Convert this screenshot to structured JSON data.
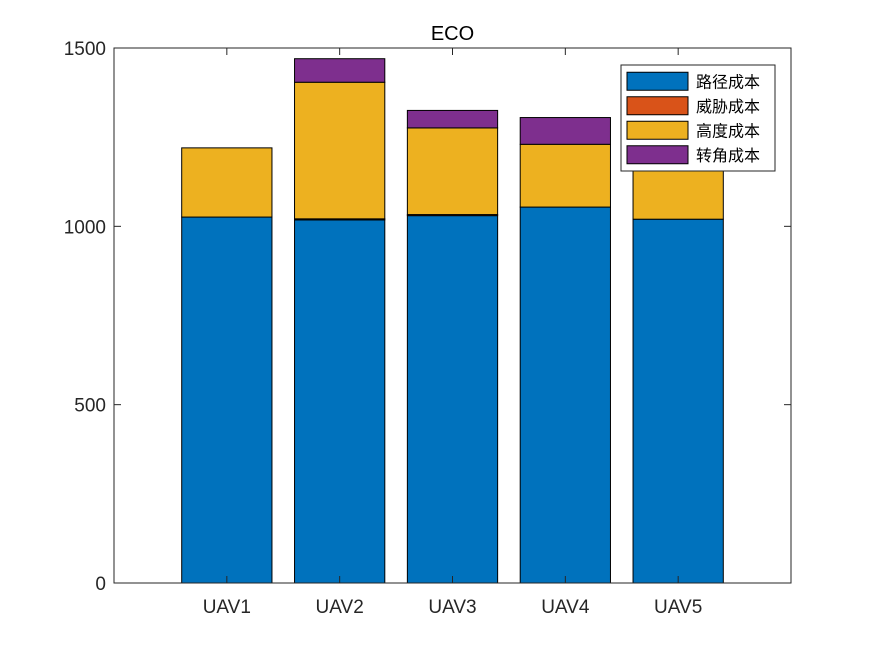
{
  "chart_data": {
    "type": "bar",
    "stacked": true,
    "title": "ECO",
    "xlabel": "",
    "ylabel": "",
    "categories": [
      "UAV1",
      "UAV2",
      "UAV3",
      "UAV4",
      "UAV5"
    ],
    "series": [
      {
        "name": "路径成本",
        "color": "#0072BD",
        "values": [
          1026,
          1018,
          1030,
          1054,
          1020
        ]
      },
      {
        "name": "威胁成本",
        "color": "#D95319",
        "values": [
          0,
          3,
          3,
          0,
          0
        ]
      },
      {
        "name": "高度成本",
        "color": "#EDB120",
        "values": [
          194,
          383,
          243,
          176,
          170
        ]
      },
      {
        "name": "转角成本",
        "color": "#7E2F8E",
        "values": [
          0,
          66,
          49,
          75,
          0
        ]
      }
    ],
    "ylim": [
      0,
      1500
    ],
    "yticks": [
      0,
      500,
      1000,
      1500
    ],
    "xlim": [
      0,
      6
    ],
    "grid": false,
    "legend_position": "top-right"
  }
}
